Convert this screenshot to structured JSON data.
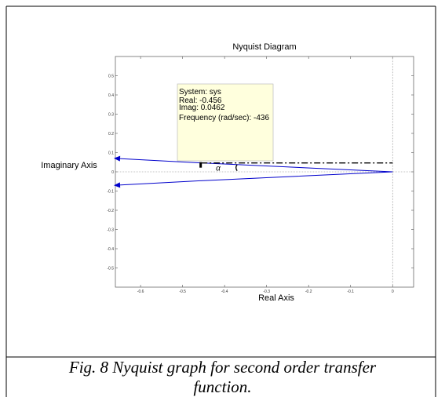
{
  "caption": {
    "line1": "Fig. 8 Nyquist graph for second order transfer",
    "line2": "function."
  },
  "chart_data": {
    "type": "line",
    "title": "Nyquist Diagram",
    "xlabel": "Real Axis",
    "ylabel": "Imaginary Axis",
    "xlim": [
      -0.66,
      0.05
    ],
    "ylim": [
      -0.6,
      0.6
    ],
    "x_ticks": [
      "-0.6",
      "-0.5",
      "-0.4",
      "-0.3",
      "-0.2",
      "-0.1",
      "0"
    ],
    "y_ticks": [
      "0.5",
      "0.4",
      "0.3",
      "0.2",
      "0.1",
      "0",
      "-0.1",
      "-0.2",
      "-0.3",
      "-0.4",
      "-0.5"
    ],
    "grid": false,
    "series": [
      {
        "x": [
          0.0,
          -0.456,
          -0.66
        ],
        "y": [
          0.0,
          0.0462,
          0.07
        ]
      },
      {
        "x": [
          0.0,
          -0.456,
          -0.66
        ],
        "y": [
          0.0,
          -0.0462,
          -0.07
        ]
      }
    ],
    "datatip": {
      "x": -0.456,
      "y": 0.0462,
      "line1": "System: sys",
      "line2": "Real: -0.456",
      "line3": "Imag: 0.0462",
      "line4": "Frequency (rad/sec): -436"
    },
    "annotation": {
      "label": "α",
      "ref_y": 0.0462
    },
    "colors": {
      "curve": "#0000cc",
      "tip_bg": "#ffffdd",
      "axes": "#000000"
    }
  }
}
